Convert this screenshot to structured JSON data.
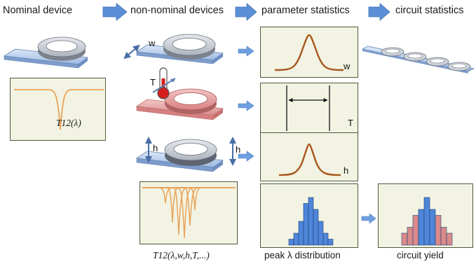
{
  "header": {
    "step1": "Nominal device",
    "step2": "non-nominal devices",
    "step3": "parameter statistics",
    "step4": "circuit statistics"
  },
  "nominal": {
    "spectrum_label": "T12(λ)"
  },
  "variations": [
    {
      "param": "w",
      "dist_label": "w"
    },
    {
      "param": "T",
      "dist_label": "T"
    },
    {
      "param": "h",
      "dist_label": "h"
    }
  ],
  "captions": {
    "varied_spectrum": "T12(λ,w,h,T,...)",
    "peak_distribution": "peak λ distribution",
    "circuit_yield": "circuit yield"
  },
  "colors": {
    "arrow_blue": "#5b8fd6",
    "panel_bg": "#f2f3e2",
    "panel_border": "#4f5a3c",
    "curve_brown": "#a8561e",
    "spectrum_orange": "#e8a45c",
    "ring_gray": "#c8cdd6",
    "waveguide_blue": "#a9c4ea",
    "heated_pink": "#e69a9a",
    "bar_blue": "#4f86d9",
    "bar_pink": "#d98a8a"
  },
  "histograms": {
    "peak_distribution": [
      1,
      2,
      4,
      7,
      8,
      6,
      4,
      2,
      1
    ],
    "circuit_yield": [
      2,
      3,
      5,
      6,
      8,
      6,
      5,
      3,
      2
    ],
    "circuit_yield_blue_bins": [
      3,
      4,
      5
    ]
  }
}
